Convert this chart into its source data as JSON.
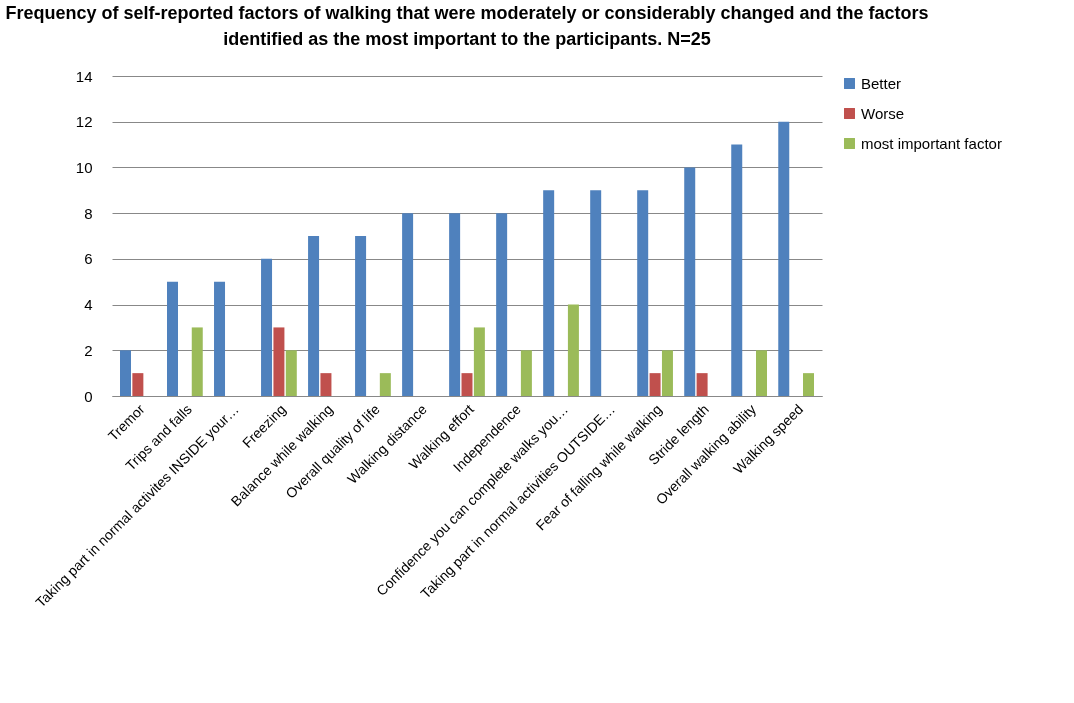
{
  "chart_data": {
    "type": "bar",
    "title": "Frequency of self-reported factors of walking that were moderately or considerably changed and the factors identified as the most important to the participants. N=25",
    "categories": [
      "Tremor",
      "Trips and falls",
      "Taking part in normal activites INSIDE your…",
      "Freezing",
      "Balance while walking",
      "Overall quality of life",
      "Walking distance",
      "Walking effort",
      "Independence",
      "Confidence you can complete walks you…",
      "Taking part in normal activities OUTSIDE…",
      "Fear of falling while walking",
      "Stride length",
      "Overall walking ability",
      "Walking speed"
    ],
    "series": [
      {
        "name": "Better",
        "color": "#4f81bd",
        "values": [
          2,
          5,
          5,
          6,
          7,
          7,
          8,
          8,
          8,
          9,
          9,
          9,
          10,
          11,
          12
        ]
      },
      {
        "name": "Worse",
        "color": "#c0504d",
        "values": [
          1,
          0,
          0,
          3,
          1,
          0,
          0,
          1,
          0,
          0,
          0,
          1,
          1,
          0,
          0
        ]
      },
      {
        "name": "most important factor",
        "color": "#9bbb59",
        "values": [
          0,
          3,
          0,
          2,
          0,
          1,
          0,
          3,
          2,
          4,
          0,
          2,
          0,
          2,
          1
        ]
      }
    ],
    "ylim": [
      0,
      14
    ],
    "yticks": [
      0,
      2,
      4,
      6,
      8,
      10,
      12,
      14
    ],
    "grid": "y",
    "legend": "right"
  }
}
